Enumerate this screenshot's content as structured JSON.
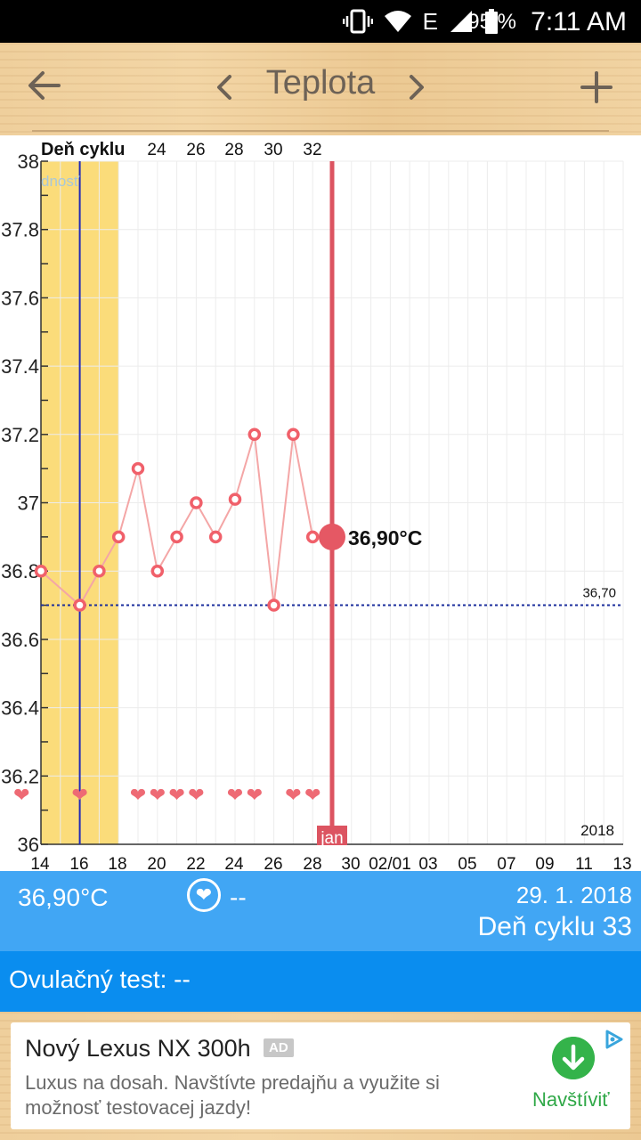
{
  "status_bar": {
    "icons": [
      "vibrate-icon",
      "wifi-icon",
      "network-e-icon",
      "signal-icon",
      "battery-icon"
    ],
    "network_type": "E",
    "battery_percent": "95 %",
    "time": "7:11 AM"
  },
  "header": {
    "title": "Teplota",
    "icons": {
      "back": "back-arrow-icon",
      "prev": "chevron-left-icon",
      "next": "chevron-right-icon",
      "add": "plus-icon"
    }
  },
  "chart": {
    "top_axis_label": "Deň cyklu",
    "top_ticks": [
      "24",
      "26",
      "28",
      "30",
      "32"
    ],
    "legend_fragment": "dnosť",
    "y_ticks": [
      "38",
      "37.8",
      "37.6",
      "37.4",
      "37.2",
      "37",
      "36.8",
      "36.6",
      "36.4",
      "36.2",
      "36"
    ],
    "x_ticks": [
      "14",
      "16",
      "18",
      "20",
      "22",
      "24",
      "26",
      "28",
      "30",
      "02/01",
      "03",
      "05",
      "07",
      "09",
      "11",
      "13"
    ],
    "month_marker": "jan",
    "year_label": "2018",
    "coverline_label": "36,70",
    "selected_label": "36,90°C"
  },
  "chart_data": {
    "type": "line",
    "xlabel": "",
    "ylabel": "",
    "ylim": [
      36.0,
      38.0
    ],
    "x_axis": "date (January 2018 → February 2018)",
    "series": [
      {
        "name": "",
        "points": [
          {
            "x": "14",
            "y": 36.8
          },
          {
            "x": "16",
            "y": 36.7
          },
          {
            "x": "17",
            "y": 36.8
          },
          {
            "x": "18",
            "y": 36.9
          },
          {
            "x": "19",
            "y": 37.1
          },
          {
            "x": "20",
            "y": 36.8
          },
          {
            "x": "21",
            "y": 36.9
          },
          {
            "x": "22",
            "y": 37.0
          },
          {
            "x": "23",
            "y": 36.9
          },
          {
            "x": "24",
            "y": 37.01
          },
          {
            "x": "25",
            "y": 37.2
          },
          {
            "x": "26",
            "y": 36.7
          },
          {
            "x": "27",
            "y": 37.2
          },
          {
            "x": "28",
            "y": 36.9
          },
          {
            "x": "29",
            "y": 36.9
          }
        ]
      }
    ],
    "selected_point": {
      "x": "29",
      "y": 36.9
    },
    "coverline": 36.7,
    "heart_days": [
      "13",
      "16",
      "19",
      "20",
      "21",
      "22",
      "24",
      "25",
      "27",
      "28"
    ],
    "highlight_band": {
      "from": "14",
      "to": "18",
      "color": "#fbdc7a"
    },
    "ovulation_line_day": "16",
    "today_line_day": "29",
    "grid": true,
    "colors": {
      "line": "#f4a6a6",
      "marker": "#f0606a",
      "selected": "#e55864",
      "today_line": "#dc5461",
      "coverline": "#1b2e9c",
      "ovulation": "#2029b8"
    }
  },
  "info": {
    "temperature": "36,90°C",
    "heart_value": "--",
    "date": "29. 1. 2018",
    "cycle_day": "Deň cyklu 33"
  },
  "ovulation": {
    "label": "Ovulačný test: --"
  },
  "ad": {
    "title": "Nový Lexus NX 300h",
    "badge": "AD",
    "body": "Luxus na dosah. Navštívte predajňu a využite si možnosť testovacej jazdy!",
    "cta": "Navštíviť",
    "cta_icon": "download-arrow-icon",
    "choices_icon": "adchoices-icon"
  }
}
